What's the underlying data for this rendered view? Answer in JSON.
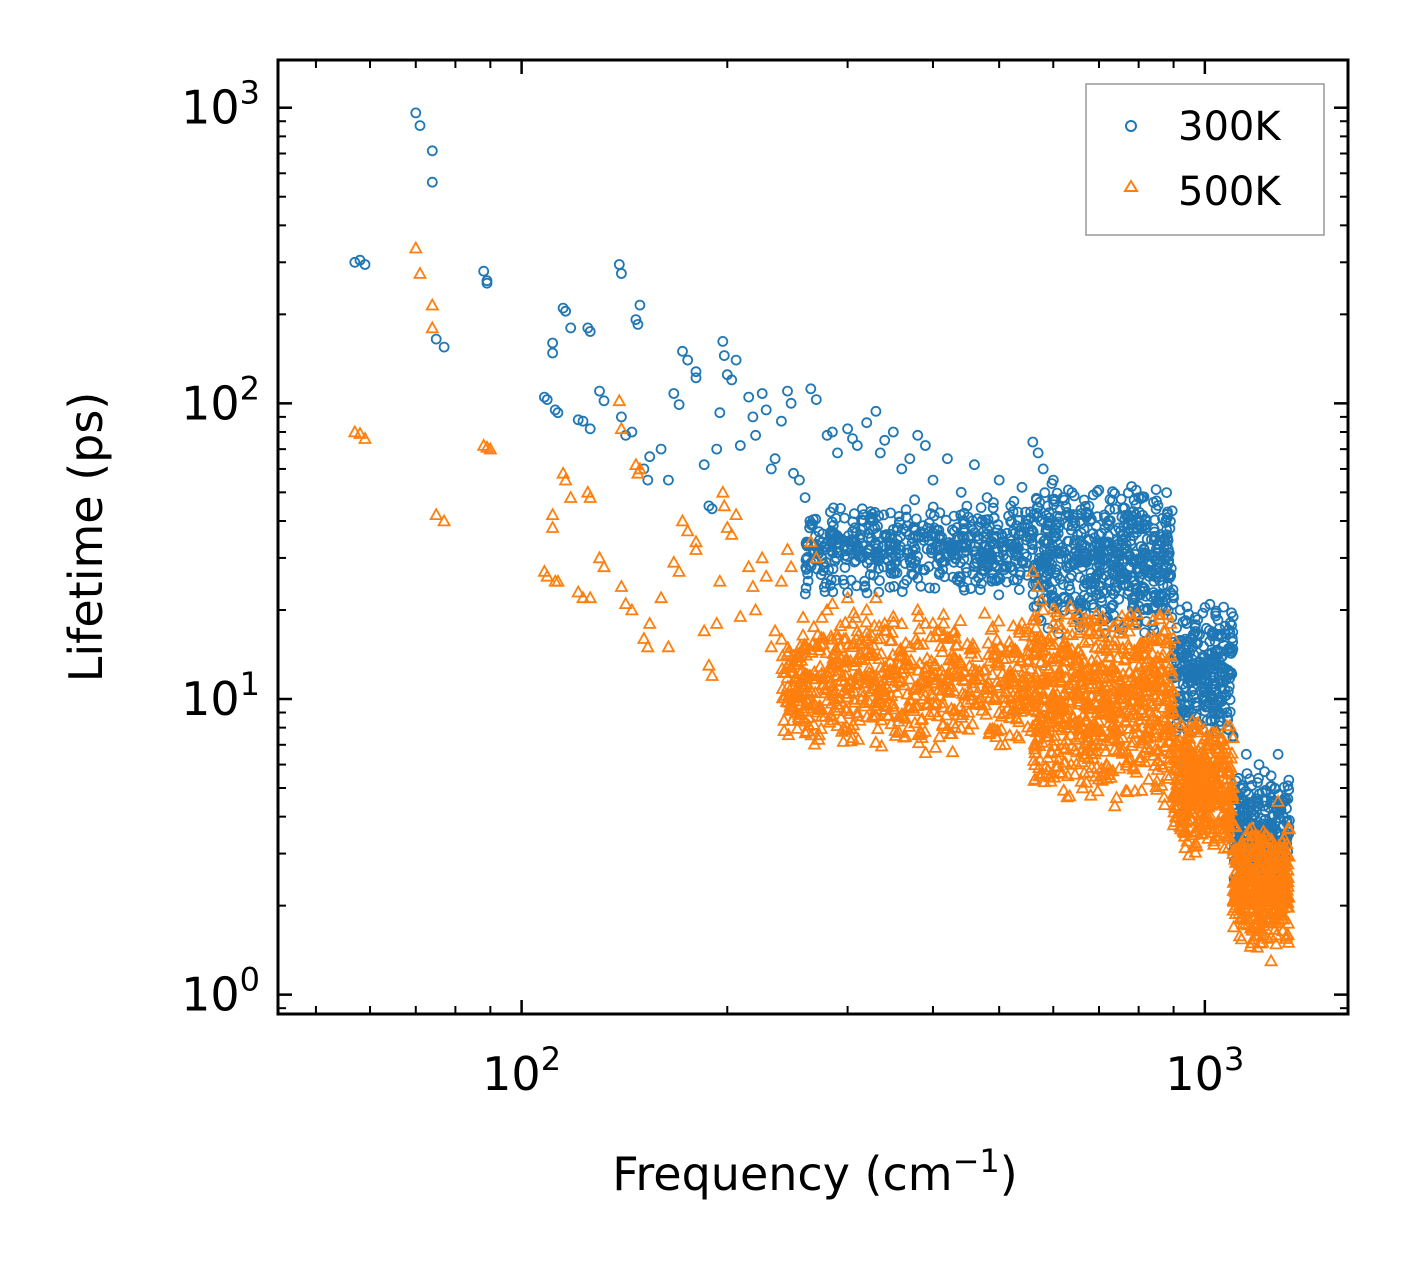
{
  "chart_data": {
    "type": "scatter",
    "title": "",
    "xlabel": "Frequency (cm",
    "xlabel_superscript": "−1",
    "xlabel_suffix": ")",
    "ylabel": "Lifetime (ps)",
    "xscale": "log",
    "yscale": "log",
    "xlim": [
      44,
      1620
    ],
    "ylim": [
      0.86,
      1450
    ],
    "legend_location": "top-right",
    "x_ticks": [
      {
        "value": 100,
        "base": "10",
        "exp": "2"
      },
      {
        "value": 1000,
        "base": "10",
        "exp": "3"
      }
    ],
    "y_ticks": [
      {
        "value": 1,
        "base": "10",
        "exp": "0"
      },
      {
        "value": 10,
        "base": "10",
        "exp": "1"
      },
      {
        "value": 100,
        "base": "10",
        "exp": "2"
      },
      {
        "value": 1000,
        "base": "10",
        "exp": "3"
      }
    ],
    "series": [
      {
        "name": "300K",
        "marker": "circle",
        "color": "#1f77b4",
        "points": [
          [
            57,
            300
          ],
          [
            58,
            305
          ],
          [
            59,
            295
          ],
          [
            70,
            960
          ],
          [
            71,
            870
          ],
          [
            74,
            715
          ],
          [
            74,
            560
          ],
          [
            75,
            165
          ],
          [
            77,
            155
          ],
          [
            88,
            280
          ],
          [
            89,
            260
          ],
          [
            89,
            255
          ],
          [
            108,
            105
          ],
          [
            109,
            103
          ],
          [
            111,
            160
          ],
          [
            111,
            148
          ],
          [
            112,
            95
          ],
          [
            113,
            93
          ],
          [
            115,
            210
          ],
          [
            116,
            205
          ],
          [
            118,
            180
          ],
          [
            121,
            88
          ],
          [
            123,
            87
          ],
          [
            125,
            180
          ],
          [
            126,
            175
          ],
          [
            126,
            82
          ],
          [
            130,
            110
          ],
          [
            132,
            102
          ],
          [
            139,
            295
          ],
          [
            140,
            275
          ],
          [
            140,
            90
          ],
          [
            142,
            78
          ],
          [
            145,
            80
          ],
          [
            147,
            192
          ],
          [
            148,
            185
          ],
          [
            149,
            215
          ],
          [
            151,
            60
          ],
          [
            153,
            55
          ],
          [
            154,
            66
          ],
          [
            160,
            70
          ],
          [
            164,
            55
          ],
          [
            167,
            108
          ],
          [
            170,
            99
          ],
          [
            172,
            150
          ],
          [
            175,
            140
          ],
          [
            180,
            128
          ],
          [
            180,
            122
          ],
          [
            185,
            62
          ],
          [
            188,
            45
          ],
          [
            190,
            44
          ],
          [
            193,
            70
          ],
          [
            195,
            93
          ],
          [
            197,
            162
          ],
          [
            198,
            145
          ],
          [
            200,
            125
          ],
          [
            203,
            120
          ],
          [
            206,
            140
          ],
          [
            209,
            72
          ],
          [
            215,
            105
          ],
          [
            218,
            90
          ],
          [
            220,
            78
          ],
          [
            225,
            108
          ],
          [
            228,
            95
          ],
          [
            232,
            60
          ],
          [
            235,
            65
          ],
          [
            240,
            87
          ],
          [
            245,
            110
          ],
          [
            248,
            100
          ],
          [
            250,
            58
          ],
          [
            255,
            55
          ],
          [
            260,
            48
          ],
          [
            265,
            112
          ],
          [
            270,
            103
          ],
          [
            280,
            78
          ],
          [
            285,
            80
          ],
          [
            290,
            68
          ],
          [
            300,
            82
          ],
          [
            305,
            76
          ],
          [
            310,
            72
          ],
          [
            320,
            86
          ],
          [
            330,
            94
          ],
          [
            335,
            68
          ],
          [
            340,
            75
          ],
          [
            350,
            80
          ],
          [
            360,
            60
          ],
          [
            370,
            65
          ],
          [
            380,
            78
          ],
          [
            390,
            72
          ],
          [
            400,
            55
          ],
          [
            420,
            65
          ],
          [
            440,
            50
          ],
          [
            460,
            62
          ],
          [
            480,
            48
          ],
          [
            500,
            55
          ],
          [
            520,
            45
          ],
          [
            540,
            52
          ],
          [
            560,
            74
          ],
          [
            570,
            68
          ],
          [
            580,
            60
          ],
          [
            600,
            55
          ],
          [
            620,
            48
          ],
          [
            650,
            42
          ],
          [
            680,
            40
          ],
          [
            700,
            36
          ],
          [
            720,
            34
          ],
          [
            760,
            36
          ],
          [
            800,
            48
          ],
          [
            820,
            38
          ],
          [
            850,
            30
          ],
          [
            880,
            28
          ],
          [
            900,
            22
          ],
          [
            920,
            20
          ],
          [
            940,
            18
          ],
          [
            960,
            15
          ],
          [
            980,
            12
          ],
          [
            1000,
            11
          ],
          [
            1020,
            10
          ],
          [
            1050,
            9
          ],
          [
            1080,
            8.5
          ],
          [
            1100,
            7.5
          ],
          [
            1150,
            6.5
          ],
          [
            1200,
            6
          ],
          [
            1250,
            5.5
          ],
          [
            1280,
            6.5
          ],
          [
            1300,
            4.5
          ],
          [
            1320,
            3.5
          ]
        ],
        "bands": [
          {
            "x": [
              260,
              560
            ],
            "y_lo": 22,
            "y_hi": 48,
            "n": 550
          },
          {
            "x": [
              560,
              900
            ],
            "y_lo": 16,
            "y_hi": 55,
            "n": 600
          },
          {
            "x": [
              900,
              1100
            ],
            "y_lo": 7,
            "y_hi": 22,
            "n": 300
          },
          {
            "x": [
              1100,
              1330
            ],
            "y_lo": 2.2,
            "y_hi": 6,
            "n": 260
          }
        ]
      },
      {
        "name": "500K",
        "marker": "triangle",
        "color": "#ff7f0e",
        "points": [
          [
            57,
            80
          ],
          [
            58,
            79
          ],
          [
            59,
            76
          ],
          [
            70,
            335
          ],
          [
            71,
            275
          ],
          [
            74,
            215
          ],
          [
            74,
            180
          ],
          [
            75,
            42
          ],
          [
            77,
            40
          ],
          [
            88,
            72
          ],
          [
            89,
            71
          ],
          [
            90,
            70
          ],
          [
            108,
            27
          ],
          [
            109,
            26
          ],
          [
            111,
            42
          ],
          [
            111,
            38
          ],
          [
            112,
            25
          ],
          [
            113,
            25
          ],
          [
            115,
            58
          ],
          [
            116,
            55
          ],
          [
            118,
            48
          ],
          [
            121,
            23
          ],
          [
            123,
            22
          ],
          [
            125,
            50
          ],
          [
            126,
            48
          ],
          [
            126,
            22
          ],
          [
            130,
            30
          ],
          [
            132,
            28
          ],
          [
            139,
            102
          ],
          [
            140,
            82
          ],
          [
            140,
            24
          ],
          [
            142,
            21
          ],
          [
            145,
            20
          ],
          [
            147,
            62
          ],
          [
            148,
            58
          ],
          [
            149,
            60
          ],
          [
            151,
            16
          ],
          [
            153,
            15
          ],
          [
            154,
            18
          ],
          [
            160,
            22
          ],
          [
            164,
            15
          ],
          [
            167,
            29
          ],
          [
            170,
            27
          ],
          [
            172,
            40
          ],
          [
            175,
            37
          ],
          [
            180,
            34
          ],
          [
            180,
            32
          ],
          [
            185,
            17
          ],
          [
            188,
            13
          ],
          [
            190,
            12
          ],
          [
            193,
            18
          ],
          [
            195,
            25
          ],
          [
            197,
            50
          ],
          [
            198,
            45
          ],
          [
            200,
            38
          ],
          [
            203,
            36
          ],
          [
            206,
            42
          ],
          [
            209,
            19
          ],
          [
            215,
            28
          ],
          [
            218,
            24
          ],
          [
            220,
            20
          ],
          [
            225,
            30
          ],
          [
            228,
            26
          ],
          [
            232,
            15
          ],
          [
            235,
            17
          ],
          [
            240,
            25
          ],
          [
            245,
            32
          ],
          [
            248,
            28
          ],
          [
            250,
            14
          ],
          [
            255,
            14
          ],
          [
            260,
            12
          ],
          [
            265,
            34
          ],
          [
            270,
            30
          ],
          [
            280,
            20
          ],
          [
            285,
            21
          ],
          [
            290,
            16
          ],
          [
            300,
            22
          ],
          [
            305,
            18
          ],
          [
            310,
            17
          ],
          [
            320,
            20
          ],
          [
            330,
            22
          ],
          [
            335,
            16
          ],
          [
            340,
            18
          ],
          [
            350,
            19
          ],
          [
            360,
            14
          ],
          [
            370,
            15
          ],
          [
            380,
            20
          ],
          [
            390,
            18
          ],
          [
            400,
            12
          ],
          [
            420,
            16
          ],
          [
            440,
            12
          ],
          [
            460,
            15
          ],
          [
            480,
            11
          ],
          [
            500,
            13
          ],
          [
            520,
            10
          ],
          [
            540,
            11
          ],
          [
            560,
            27
          ],
          [
            570,
            24
          ],
          [
            580,
            20
          ],
          [
            600,
            18
          ],
          [
            620,
            15
          ],
          [
            650,
            13
          ],
          [
            680,
            12
          ],
          [
            700,
            11
          ],
          [
            720,
            10
          ],
          [
            760,
            10
          ],
          [
            800,
            14
          ],
          [
            820,
            11
          ],
          [
            850,
            9
          ],
          [
            880,
            8
          ],
          [
            900,
            7
          ],
          [
            920,
            6.5
          ],
          [
            940,
            6
          ],
          [
            960,
            5.5
          ],
          [
            980,
            5
          ],
          [
            1000,
            4.5
          ],
          [
            1020,
            4
          ],
          [
            1050,
            3.8
          ],
          [
            1080,
            3.4
          ],
          [
            1100,
            3
          ],
          [
            1150,
            2.6
          ],
          [
            1200,
            2.4
          ],
          [
            1250,
            2.2
          ],
          [
            1280,
            4.5
          ],
          [
            1300,
            1.8
          ],
          [
            1320,
            1.6
          ],
          [
            1250,
            1.3
          ],
          [
            1200,
            1.8
          ]
        ],
        "bands": [
          {
            "x": [
              240,
              560
            ],
            "y_lo": 6.5,
            "y_hi": 20,
            "n": 700
          },
          {
            "x": [
              560,
              900
            ],
            "y_lo": 4.2,
            "y_hi": 22,
            "n": 750
          },
          {
            "x": [
              900,
              1100
            ],
            "y_lo": 2.8,
            "y_hi": 9,
            "n": 400
          },
          {
            "x": [
              1100,
              1330
            ],
            "y_lo": 1.4,
            "y_hi": 4,
            "n": 400
          }
        ]
      }
    ]
  }
}
